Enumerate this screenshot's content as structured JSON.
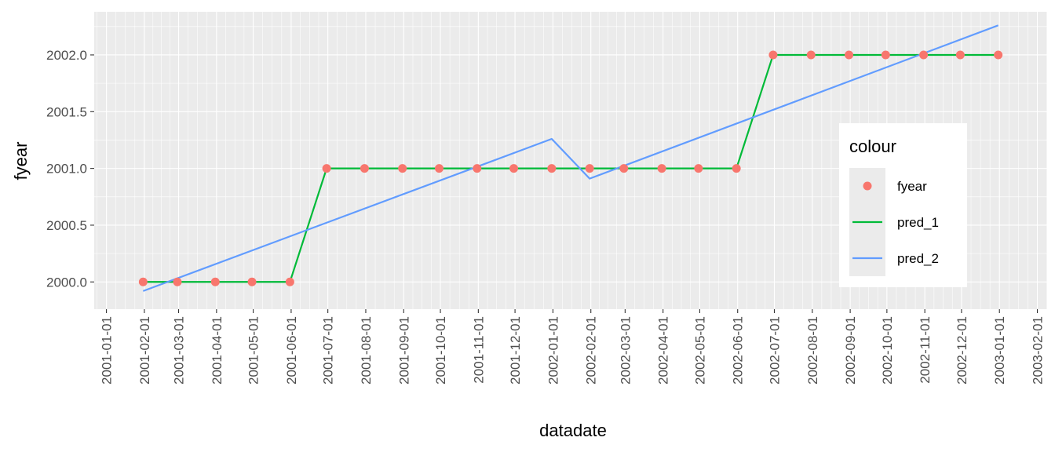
{
  "chart_data": {
    "type": "line",
    "xlabel": "datadate",
    "ylabel": "fyear",
    "x_tick_labels": [
      "2001-01-01",
      "2001-02-01",
      "2001-03-01",
      "2001-04-01",
      "2001-05-01",
      "2001-06-01",
      "2001-07-01",
      "2001-08-01",
      "2001-09-01",
      "2001-10-01",
      "2001-11-01",
      "2001-12-01",
      "2002-01-01",
      "2002-02-01",
      "2002-03-01",
      "2002-04-01",
      "2002-05-01",
      "2002-06-01",
      "2002-07-01",
      "2002-08-01",
      "2002-09-01",
      "2002-10-01",
      "2002-11-01",
      "2002-12-01",
      "2003-01-01",
      "2003-02-01"
    ],
    "y_tick_labels": [
      "2000.0",
      "2000.5",
      "2001.0",
      "2001.5",
      "2002.0"
    ],
    "xlim": [
      "2000-12-22",
      "2003-02-09"
    ],
    "ylim": [
      1999.76,
      2002.38
    ],
    "grid": true,
    "legend_title": "colour",
    "legend_position": "right-inside",
    "series": [
      {
        "name": "fyear",
        "kind": "points",
        "color": "#F8766D",
        "x": [
          "2001-01-31",
          "2001-02-28",
          "2001-03-31",
          "2001-04-30",
          "2001-05-31",
          "2001-06-30",
          "2001-07-31",
          "2001-08-31",
          "2001-09-30",
          "2001-10-31",
          "2001-11-30",
          "2001-12-31",
          "2002-01-31",
          "2002-02-28",
          "2002-03-31",
          "2002-04-30",
          "2002-05-31",
          "2002-06-30",
          "2002-07-31",
          "2002-08-31",
          "2002-09-30",
          "2002-10-31",
          "2002-11-30",
          "2002-12-31"
        ],
        "y": [
          2000,
          2000,
          2000,
          2000,
          2000,
          2001,
          2001,
          2001,
          2001,
          2001,
          2001,
          2001,
          2001,
          2001,
          2001,
          2001,
          2001,
          2002,
          2002,
          2002,
          2002,
          2002,
          2002,
          2002
        ]
      },
      {
        "name": "pred_1",
        "kind": "line",
        "color": "#00BA38",
        "x": [
          "2001-01-31",
          "2001-02-28",
          "2001-03-31",
          "2001-04-30",
          "2001-05-31",
          "2001-06-30",
          "2001-07-31",
          "2001-08-31",
          "2001-09-30",
          "2001-10-31",
          "2001-11-30",
          "2001-12-31",
          "2002-01-31",
          "2002-02-28",
          "2002-03-31",
          "2002-04-30",
          "2002-05-31",
          "2002-06-30",
          "2002-07-31",
          "2002-08-31",
          "2002-09-30",
          "2002-10-31",
          "2002-11-30",
          "2002-12-31"
        ],
        "y": [
          2000,
          2000,
          2000,
          2000,
          2000,
          2001,
          2001,
          2001,
          2001,
          2001,
          2001,
          2001,
          2001,
          2001,
          2001,
          2001,
          2001,
          2002,
          2002,
          2002,
          2002,
          2002,
          2002,
          2002
        ]
      },
      {
        "name": "pred_2",
        "kind": "line",
        "color": "#619CFF",
        "x": [
          "2001-01-31",
          "2001-12-31",
          "2002-01-31",
          "2002-12-31"
        ],
        "y": [
          1999.92,
          2001.26,
          2000.91,
          2002.26
        ]
      }
    ]
  }
}
